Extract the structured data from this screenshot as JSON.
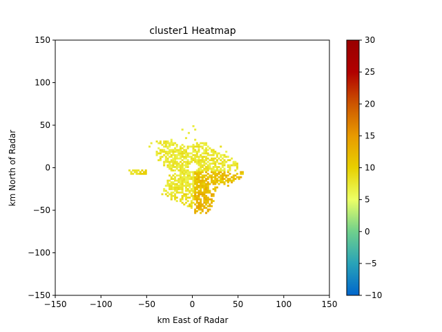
{
  "chart_data": {
    "type": "heatmap",
    "title": "cluster1 Heatmap",
    "xlabel": "km East of Radar",
    "ylabel": "km North of Radar",
    "xlim": [
      -150,
      150
    ],
    "ylim": [
      -150,
      150
    ],
    "x_ticks": [
      "−150",
      "−100",
      "−50",
      "0",
      "50",
      "100",
      "150"
    ],
    "x_tick_values": [
      -150,
      -100,
      -50,
      0,
      50,
      100,
      150
    ],
    "y_ticks": [
      "−150",
      "−100",
      "−50",
      "0",
      "50",
      "100",
      "150"
    ],
    "y_tick_values": [
      -150,
      -100,
      -50,
      0,
      50,
      100,
      150
    ],
    "colorbar": {
      "range": [
        -10,
        30
      ],
      "ticks": [
        "−10",
        "−5",
        "0",
        "5",
        "10",
        "15",
        "20",
        "25",
        "30"
      ],
      "tick_values": [
        -10,
        -5,
        0,
        5,
        10,
        15,
        20,
        25,
        30
      ],
      "colors": [
        "#0066cc",
        "#29a3b8",
        "#6fd08c",
        "#ecff66",
        "#e8d000",
        "#e89a00",
        "#cc5500",
        "#b10000",
        "#990000"
      ]
    },
    "echo_region": {
      "center_km": [
        0,
        -5
      ],
      "approx_extent_km": {
        "x": [
          -55,
          52
        ],
        "y": [
          -52,
          50
        ]
      },
      "typical_value_range": [
        6,
        13
      ],
      "center_gap_radius_km": 5,
      "note_streak_km": {
        "x": [
          -70,
          -50
        ],
        "y": [
          -8,
          -2
        ]
      }
    }
  }
}
